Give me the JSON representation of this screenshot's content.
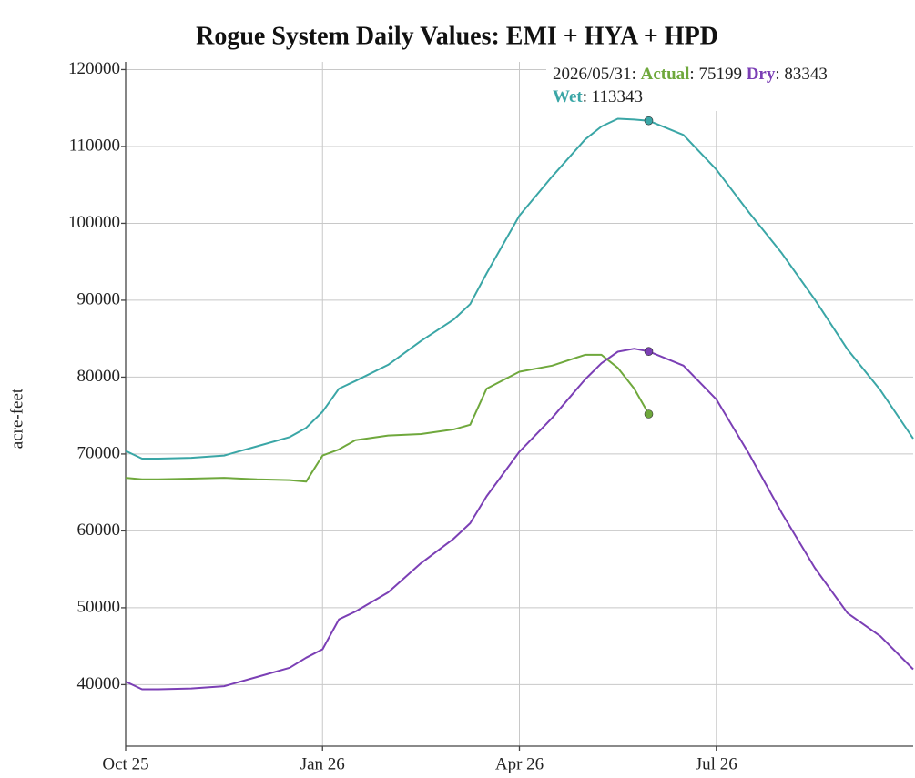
{
  "chart_data": {
    "type": "line",
    "title": "Rogue System Daily Values: EMI + HYA + HPD",
    "y_label": "acre-feet",
    "x": [
      0,
      0.25,
      0.5,
      1,
      1.5,
      2,
      2.5,
      2.75,
      3,
      3.25,
      3.5,
      4,
      4.5,
      5,
      5.25,
      5.5,
      6,
      6.5,
      7,
      7.25,
      7.5,
      7.75,
      7.97,
      8.5,
      9,
      9.5,
      10,
      10.5,
      11,
      11.5,
      12
    ],
    "xlim": [
      0,
      12
    ],
    "xticks": [
      {
        "value": 0,
        "label": "Oct 25"
      },
      {
        "value": 3,
        "label": "Jan 26"
      },
      {
        "value": 6,
        "label": "Apr 26"
      },
      {
        "value": 9,
        "label": "Jul 26"
      }
    ],
    "ylim": [
      32000,
      121000
    ],
    "yticks": [
      40000,
      50000,
      60000,
      70000,
      80000,
      90000,
      100000,
      110000,
      120000
    ],
    "grid": true,
    "annotation": {
      "date": "2026/05/31"
    },
    "series": [
      {
        "name": "Actual",
        "color": "#6fa83c",
        "values": [
          66900,
          66700,
          66700,
          66800,
          66900,
          66700,
          66600,
          66400,
          69800,
          70600,
          71800,
          72400,
          72600,
          73200,
          73800,
          78500,
          80700,
          81500,
          82900,
          82900,
          81200,
          78500,
          75199,
          null,
          null,
          null,
          null,
          null,
          null,
          null,
          null
        ]
      },
      {
        "name": "Dry",
        "color": "#7b3fb5",
        "values": [
          40400,
          39400,
          39400,
          39500,
          39800,
          41000,
          42200,
          43500,
          44600,
          48500,
          49500,
          52000,
          55800,
          59000,
          61000,
          64500,
          70300,
          74700,
          79700,
          81800,
          83300,
          83700,
          83343,
          81500,
          77100,
          70000,
          62300,
          55200,
          49300,
          46300,
          42000
        ]
      },
      {
        "name": "Wet",
        "color": "#3aa6a6",
        "values": [
          70400,
          69400,
          69400,
          69500,
          69800,
          71000,
          72200,
          73400,
          75500,
          78500,
          79500,
          81600,
          84700,
          87500,
          89500,
          93500,
          101000,
          106100,
          110900,
          112600,
          113600,
          113500,
          113343,
          111500,
          107000,
          101400,
          96100,
          90100,
          83600,
          78300,
          72000
        ]
      }
    ]
  }
}
